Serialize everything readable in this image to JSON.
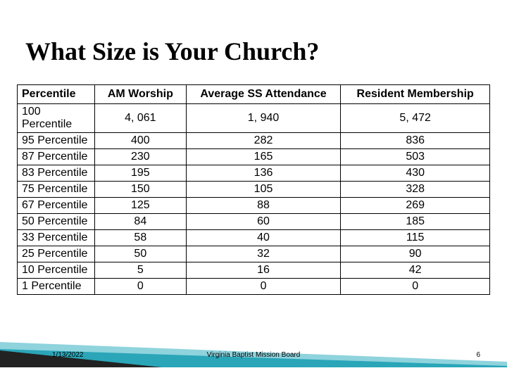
{
  "title": "What Size is Your Church?",
  "table": {
    "headers": [
      "Percentile",
      "AM Worship",
      "Average SS Attendance",
      "Resident Membership"
    ],
    "col_widths": [
      "110px",
      "130px",
      "220px",
      "212px"
    ],
    "rows": [
      [
        "100 Percentile",
        "4, 061",
        "1, 940",
        "5, 472"
      ],
      [
        "95 Percentile",
        "400",
        "282",
        "836"
      ],
      [
        "87 Percentile",
        "230",
        "165",
        "503"
      ],
      [
        "83 Percentile",
        "195",
        "136",
        "430"
      ],
      [
        "75 Percentile",
        "150",
        "105",
        "328"
      ],
      [
        "67 Percentile",
        "125",
        "88",
        "269"
      ],
      [
        "50 Percentile",
        "84",
        "60",
        "185"
      ],
      [
        "33 Percentile",
        "58",
        "40",
        "115"
      ],
      [
        "25 Percentile",
        "50",
        "32",
        "90"
      ],
      [
        "10 Percentile",
        "5",
        "16",
        "42"
      ],
      [
        "1 Percentile",
        "0",
        "0",
        "0"
      ]
    ],
    "border_color": "#000000",
    "header_fontsize": 16,
    "cell_fontsize": 16
  },
  "decor": {
    "wedge_dark": "#222222",
    "wedge_teal": "#2aa6b8",
    "wedge_light": "#8fd3dd"
  },
  "footer": {
    "date": "1/13/2022",
    "center": "Virginia Baptist Mission Board",
    "pagenum": "6"
  }
}
